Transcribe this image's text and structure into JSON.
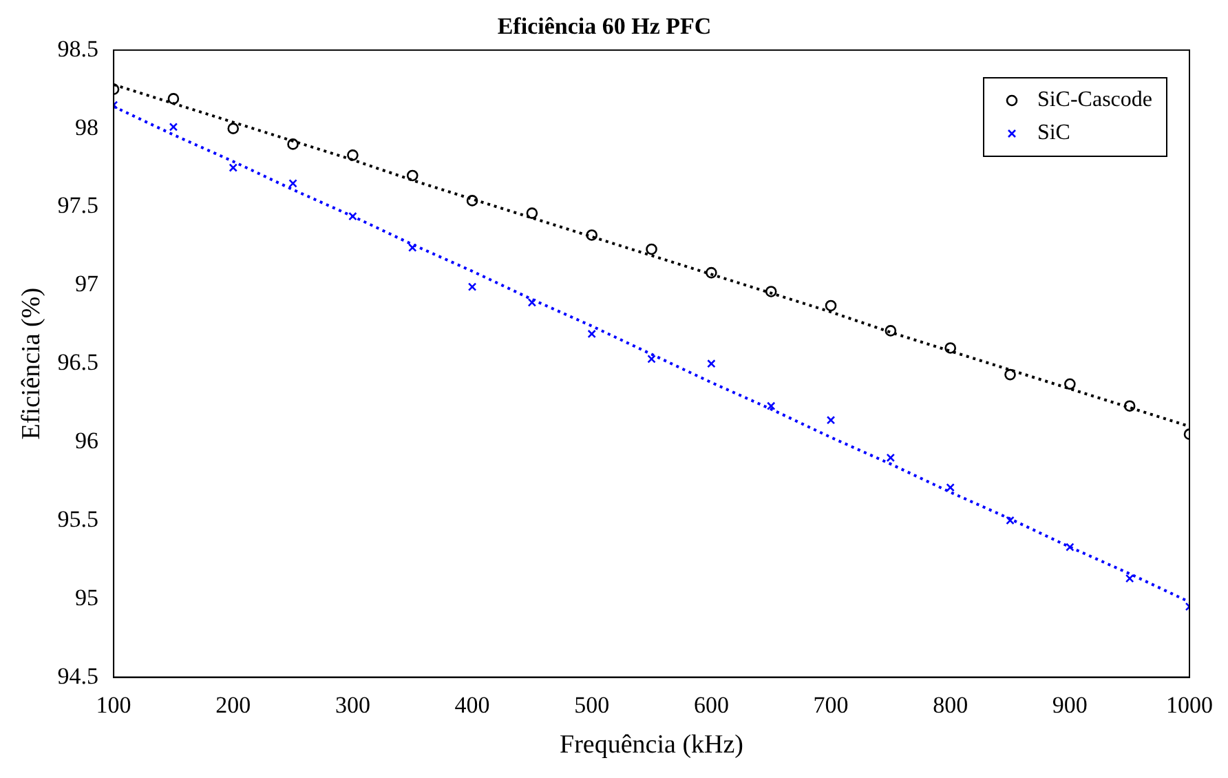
{
  "chart_data": {
    "type": "scatter",
    "title": "Eficiência 60 Hz PFC",
    "xlabel": "Frequência (kHz)",
    "ylabel": "Eficiência (%)",
    "x": [
      100,
      150,
      200,
      250,
      300,
      350,
      400,
      450,
      500,
      550,
      600,
      650,
      700,
      750,
      800,
      850,
      900,
      950,
      1000
    ],
    "series": [
      {
        "name": "SiC-Cascode",
        "type": "scatter",
        "marker": "circle",
        "color": "#000000",
        "values": [
          98.25,
          98.19,
          98.0,
          97.9,
          97.83,
          97.7,
          97.54,
          97.46,
          97.32,
          97.23,
          97.08,
          96.96,
          96.87,
          96.71,
          96.6,
          96.43,
          96.37,
          96.23,
          96.05
        ]
      },
      {
        "name": "SiC",
        "type": "scatter",
        "marker": "cross",
        "color": "#0000ff",
        "values": [
          98.15,
          98.01,
          97.75,
          97.65,
          97.44,
          97.24,
          96.99,
          96.89,
          96.69,
          96.53,
          96.5,
          96.23,
          96.14,
          95.9,
          95.71,
          95.5,
          95.33,
          95.13,
          94.95
        ]
      },
      {
        "type": "line",
        "line_style": "dotted",
        "marker": "none",
        "color": "#000000",
        "values": [
          98.28,
          98.16,
          98.04,
          97.92,
          97.8,
          97.67,
          97.55,
          97.43,
          97.31,
          97.19,
          97.07,
          96.95,
          96.83,
          96.7,
          96.58,
          96.46,
          96.34,
          96.22,
          96.1
        ]
      },
      {
        "type": "line",
        "line_style": "dotted",
        "marker": "none",
        "color": "#0000ff",
        "values": [
          98.14,
          97.96,
          97.79,
          97.61,
          97.44,
          97.26,
          97.09,
          96.91,
          96.74,
          96.56,
          96.38,
          96.21,
          96.03,
          95.86,
          95.68,
          95.51,
          95.33,
          95.16,
          94.98
        ]
      }
    ],
    "xlim": [
      100,
      1000
    ],
    "xticks": [
      100,
      200,
      300,
      400,
      500,
      600,
      700,
      800,
      900,
      1000
    ],
    "ylim": [
      94.5,
      98.5
    ],
    "yticks": [
      94.5,
      95,
      95.5,
      96,
      96.5,
      97,
      97.5,
      98,
      98.5
    ],
    "grid": false,
    "legend": "top right"
  }
}
